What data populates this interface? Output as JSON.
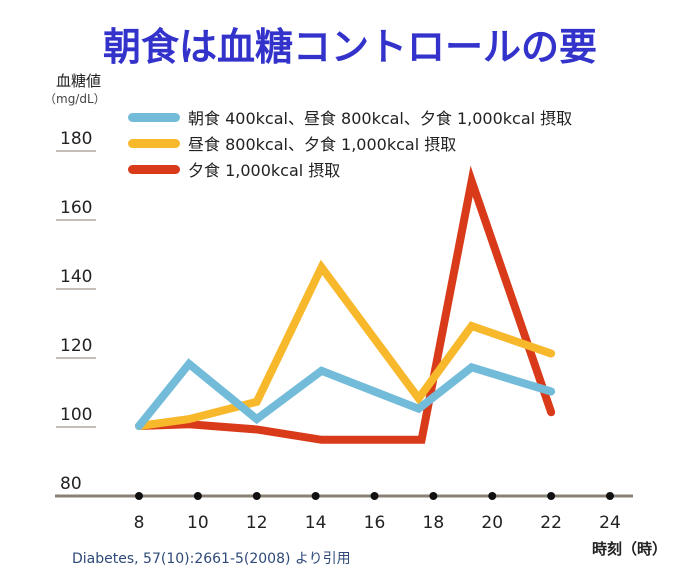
{
  "title": "朝食は血糖コントロールの要",
  "source": "Diabetes, 57(10):2661-5(2008) より引用",
  "chart_data": {
    "type": "line",
    "title": "朝食は血糖コントロールの要",
    "ylabel": "血糖値",
    "yunit": "（mg/dL）",
    "xlabel": "時刻（時）",
    "ylim": [
      80,
      180
    ],
    "xlim": [
      8,
      24
    ],
    "yticks": [
      "80",
      "100",
      "120",
      "140",
      "160",
      "180"
    ],
    "xticks": [
      "8",
      "10",
      "12",
      "14",
      "16",
      "18",
      "20",
      "22",
      "24"
    ],
    "grid": false,
    "legend": "top",
    "series": [
      {
        "name": "朝食 400kcal、昼食 800kcal、夕食 1,000kcal 摂取",
        "color": "#72bbd9",
        "points": [
          [
            8,
            100
          ],
          [
            9.7,
            118
          ],
          [
            12,
            102
          ],
          [
            14.2,
            116
          ],
          [
            17.5,
            105
          ],
          [
            19.3,
            117
          ],
          [
            22,
            110
          ]
        ]
      },
      {
        "name": "昼食 800kcal、夕食 1,000kcal 摂取",
        "color": "#f8b82c",
        "points": [
          [
            8,
            100
          ],
          [
            9.7,
            102
          ],
          [
            12,
            107
          ],
          [
            14.2,
            146
          ],
          [
            17.5,
            108
          ],
          [
            19.3,
            129
          ],
          [
            22,
            121
          ]
        ]
      },
      {
        "name": "夕食 1,000kcal 摂取",
        "color": "#d93a1a",
        "points": [
          [
            8,
            100
          ],
          [
            9.7,
            100.5
          ],
          [
            12,
            99
          ],
          [
            14.2,
            96
          ],
          [
            17.6,
            96
          ],
          [
            19.3,
            171
          ],
          [
            22,
            104
          ]
        ]
      }
    ]
  }
}
